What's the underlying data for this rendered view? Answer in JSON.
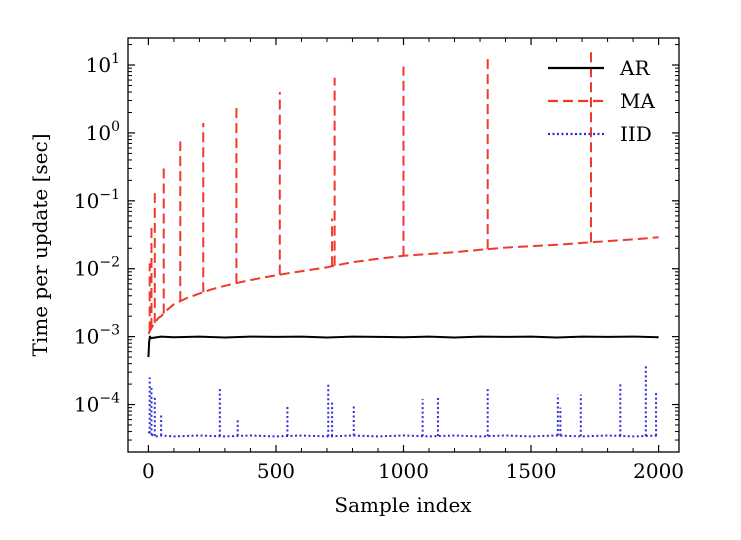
{
  "chart_data": {
    "type": "line",
    "title": "",
    "xlabel": "Sample index",
    "ylabel": "Time per update [sec]",
    "xlim": [
      -80,
      2080
    ],
    "ylim": [
      2e-05,
      25
    ],
    "y_scale": "log",
    "grid": false,
    "legend": "top-right",
    "x_ticks": [
      0,
      500,
      1000,
      1500,
      2000
    ],
    "y_ticks": [
      {
        "value": 0.0001,
        "mantissa": "10",
        "exponent": "−4"
      },
      {
        "value": 0.001,
        "mantissa": "10",
        "exponent": "−3"
      },
      {
        "value": 0.01,
        "mantissa": "10",
        "exponent": "−2"
      },
      {
        "value": 0.1,
        "mantissa": "10",
        "exponent": "−1"
      },
      {
        "value": 1,
        "mantissa": "10",
        "exponent": "0"
      },
      {
        "value": 10,
        "mantissa": "10",
        "exponent": "1"
      }
    ],
    "series": [
      {
        "name": "AR",
        "color": "#000000",
        "dash": "solid",
        "x": [
          0,
          3,
          6,
          10,
          50,
          100,
          200,
          300,
          400,
          500,
          600,
          700,
          800,
          900,
          1000,
          1100,
          1200,
          1300,
          1400,
          1500,
          1600,
          1700,
          1800,
          1900,
          2000
        ],
        "y": [
          0.0005,
          0.00085,
          0.001,
          0.00095,
          0.001,
          0.00098,
          0.001,
          0.00097,
          0.001,
          0.00099,
          0.001,
          0.00097,
          0.001,
          0.00099,
          0.00098,
          0.001,
          0.00097,
          0.001,
          0.00099,
          0.001,
          0.00097,
          0.001,
          0.00099,
          0.001,
          0.00098
        ]
      },
      {
        "name": "MA",
        "color": "#ee3a2c",
        "dash": "dashed",
        "x": [
          0,
          10,
          20,
          30,
          40,
          50,
          75,
          100,
          150,
          200,
          250,
          300,
          350,
          400,
          450,
          500,
          550,
          600,
          650,
          700,
          725,
          800,
          900,
          1000,
          1100,
          1200,
          1300,
          1400,
          1500,
          1600,
          1700,
          1800,
          1900,
          2000
        ],
        "y": [
          0.0011,
          0.0013,
          0.0015,
          0.0017,
          0.0019,
          0.002,
          0.0025,
          0.003,
          0.0037,
          0.0043,
          0.005,
          0.0056,
          0.0062,
          0.0068,
          0.0074,
          0.008,
          0.0086,
          0.0092,
          0.0098,
          0.0105,
          0.011,
          0.0125,
          0.014,
          0.0155,
          0.0165,
          0.0175,
          0.019,
          0.0205,
          0.0215,
          0.0225,
          0.024,
          0.0255,
          0.027,
          0.029
        ],
        "spikes": [
          [
            5,
            0.012
          ],
          [
            12,
            0.04
          ],
          [
            25,
            0.13
          ],
          [
            60,
            0.35
          ],
          [
            125,
            0.75
          ],
          [
            215,
            1.4
          ],
          [
            345,
            2.6
          ],
          [
            515,
            4.0
          ],
          [
            720,
            0.055
          ],
          [
            730,
            6.5
          ],
          [
            1000,
            9.5
          ],
          [
            1330,
            12.5
          ],
          [
            1735,
            16.5
          ]
        ]
      },
      {
        "name": "IID",
        "color": "#2b2bdc",
        "dash": "dotted",
        "x": [
          0,
          10,
          20,
          30,
          50,
          100,
          200,
          300,
          400,
          500,
          600,
          700,
          800,
          900,
          1000,
          1100,
          1200,
          1300,
          1400,
          1500,
          1600,
          1700,
          1800,
          1900,
          2000
        ],
        "y": [
          4e-05,
          3.6e-05,
          3.5e-05,
          3.4e-05,
          3.5e-05,
          3.4e-05,
          3.5e-05,
          3.4e-05,
          3.5e-05,
          3.4e-05,
          3.5e-05,
          3.4e-05,
          3.5e-05,
          3.4e-05,
          3.5e-05,
          3.4e-05,
          3.5e-05,
          3.4e-05,
          3.5e-05,
          3.4e-05,
          3.5e-05,
          3.4e-05,
          3.5e-05,
          3.4e-05,
          3.5e-05
        ],
        "spikes": [
          [
            5,
            0.00025
          ],
          [
            12,
            0.00018
          ],
          [
            25,
            0.00013
          ],
          [
            50,
            7e-05
          ],
          [
            280,
            0.00017
          ],
          [
            350,
            6e-05
          ],
          [
            545,
            0.0001
          ],
          [
            705,
            0.0002
          ],
          [
            720,
            0.00011
          ],
          [
            805,
            0.0001
          ],
          [
            1075,
            0.00012
          ],
          [
            1135,
            0.00013
          ],
          [
            1330,
            0.00017
          ],
          [
            1605,
            0.00014
          ],
          [
            1615,
            9e-05
          ],
          [
            1695,
            0.00014
          ],
          [
            1850,
            0.0002
          ],
          [
            1950,
            0.00038
          ],
          [
            1990,
            0.00015
          ]
        ]
      }
    ]
  }
}
